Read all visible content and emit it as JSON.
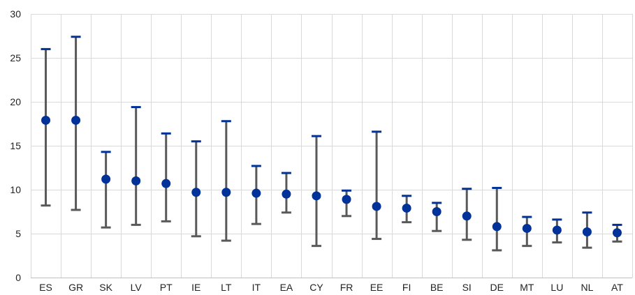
{
  "chart_data": {
    "type": "scatter",
    "title": "",
    "xlabel": "",
    "ylabel": "",
    "ylim": [
      0,
      30
    ],
    "yticks": [
      0,
      5,
      10,
      15,
      20,
      25,
      30
    ],
    "grid": true,
    "legend": "none",
    "colors": {
      "point": "#003299",
      "upper_cap": "#003299",
      "whisker": "#595959"
    },
    "categories": [
      "ES",
      "GR",
      "SK",
      "LV",
      "PT",
      "IE",
      "LT",
      "IT",
      "EA",
      "CY",
      "FR",
      "EE",
      "FI",
      "BE",
      "SI",
      "DE",
      "MT",
      "LU",
      "NL",
      "AT"
    ],
    "values": [
      17.9,
      17.9,
      11.2,
      11.0,
      10.7,
      9.7,
      9.7,
      9.6,
      9.5,
      9.3,
      8.9,
      8.1,
      7.9,
      7.5,
      7.0,
      5.8,
      5.6,
      5.4,
      5.2,
      5.1
    ],
    "high": [
      26.0,
      27.4,
      14.3,
      19.4,
      16.4,
      15.5,
      17.8,
      12.7,
      11.9,
      16.1,
      9.9,
      16.6,
      9.3,
      8.5,
      10.1,
      10.2,
      6.9,
      6.6,
      7.4,
      6.0
    ],
    "low": [
      8.2,
      7.7,
      5.7,
      6.0,
      6.4,
      4.7,
      4.2,
      6.1,
      7.4,
      3.6,
      7.0,
      4.4,
      6.3,
      5.3,
      4.3,
      3.1,
      3.6,
      4.0,
      3.4,
      4.1
    ]
  }
}
